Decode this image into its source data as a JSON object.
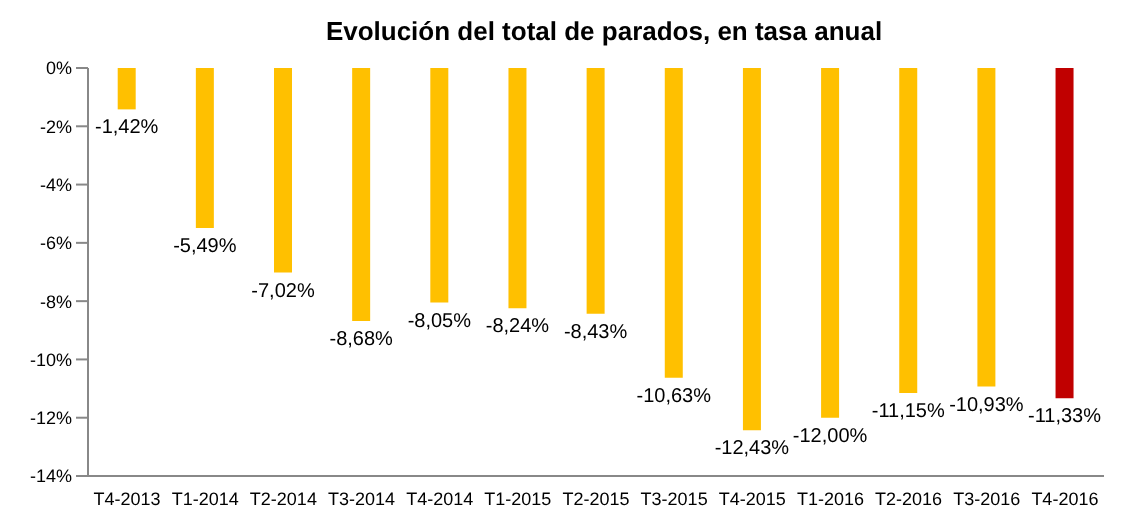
{
  "chart_data": {
    "type": "bar",
    "title": "Evolución del total de parados, en tasa anual",
    "categories": [
      "T4-2013",
      "T1-2014",
      "T2-2014",
      "T3-2014",
      "T4-2014",
      "T1-2015",
      "T2-2015",
      "T3-2015",
      "T4-2015",
      "T1-2016",
      "T2-2016",
      "T3-2016",
      "T4-2016"
    ],
    "values": [
      -1.42,
      -5.49,
      -7.02,
      -8.68,
      -8.05,
      -8.24,
      -8.43,
      -10.63,
      -12.43,
      -12.0,
      -11.15,
      -10.93,
      -11.33
    ],
    "colors": [
      "#ffc000",
      "#ffc000",
      "#ffc000",
      "#ffc000",
      "#ffc000",
      "#ffc000",
      "#ffc000",
      "#ffc000",
      "#ffc000",
      "#ffc000",
      "#ffc000",
      "#ffc000",
      "#c00000"
    ],
    "value_labels": [
      "-1,42%",
      "-5,49%",
      "-7,02%",
      "-8,68%",
      "-8,05%",
      "-8,24%",
      "-8,43%",
      "-10,63%",
      "-12,43%",
      "-12,00%",
      "-11,15%",
      "-10,93%",
      "-11,33%"
    ],
    "ylim": [
      -14,
      0
    ],
    "yticks": [
      {
        "value": 0,
        "label": "0%"
      },
      {
        "value": -2,
        "label": "-2%"
      },
      {
        "value": -4,
        "label": "-4%"
      },
      {
        "value": -6,
        "label": "-6%"
      },
      {
        "value": -8,
        "label": "-8%"
      },
      {
        "value": -10,
        "label": "-10%"
      },
      {
        "value": -12,
        "label": "-12%"
      },
      {
        "value": -14,
        "label": "-14%"
      }
    ],
    "grid": false,
    "legend": false
  }
}
